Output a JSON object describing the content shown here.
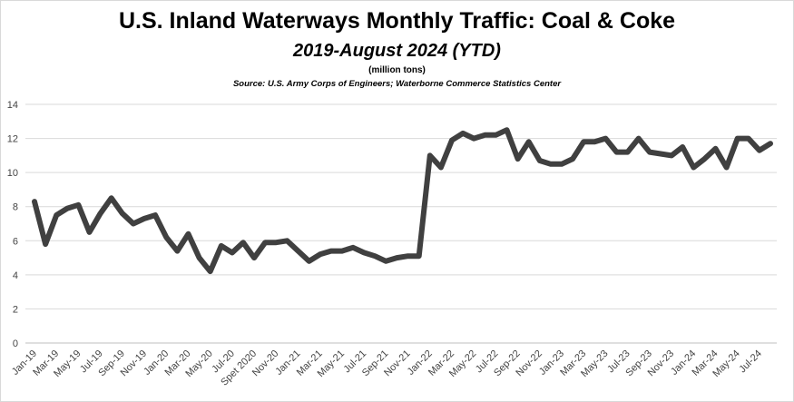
{
  "title": "U.S. Inland Waterways Monthly Traffic:  Coal & Coke",
  "subtitle": "2019-August 2024 (YTD)",
  "unit_note": "(million tons)",
  "source": "Source:  U.S. Army Corps of Engineers; Waterborne Commerce Statistics Center",
  "colors": {
    "line": "#404040",
    "grid": "#d9d9d9",
    "axis": "#bfbfbf"
  },
  "chart_data": {
    "type": "line",
    "title": "U.S. Inland Waterways Monthly Traffic:  Coal & Coke",
    "ylabel": "",
    "xlabel": "",
    "ylim": [
      0,
      14
    ],
    "yticks": [
      0,
      2,
      4,
      6,
      8,
      10,
      12,
      14
    ],
    "grid": true,
    "legend": "none",
    "x": [
      "Jan-19",
      "Feb-19",
      "Mar-19",
      "Apr-19",
      "May-19",
      "Jun-19",
      "Jul-19",
      "Aug-19",
      "Sep-19",
      "Oct-19",
      "Nov-19",
      "Dec-19",
      "Jan-20",
      "Feb-20",
      "Mar-20",
      "Apr-20",
      "May-20",
      "Jun-20",
      "Jul-20",
      "Aug-20",
      "Spet 2020",
      "Oct-20",
      "Nov-20",
      "Dec-20",
      "Jan-21",
      "Feb-21",
      "Mar-21",
      "Apr-21",
      "May-21",
      "Jun-21",
      "Jul-21",
      "Aug-21",
      "Sep-21",
      "Oct-21",
      "Nov-21",
      "Dec-21",
      "Jan-22",
      "Feb-22",
      "Mar-22",
      "Apr-22",
      "May-22",
      "Jun-22",
      "Jul-22",
      "Aug-22",
      "Sep-22",
      "Oct-22",
      "Nov-22",
      "Dec-22",
      "Jan-23",
      "Feb-23",
      "Mar-23",
      "Apr-23",
      "May-23",
      "Jun-23",
      "Jul-23",
      "Aug-23",
      "Sep-23",
      "Oct-23",
      "Nov-23",
      "Dec-23",
      "Jan-24",
      "Feb-24",
      "Mar-24",
      "Apr-24",
      "May-24",
      "Jun-24",
      "Jul-24",
      "Aug-24"
    ],
    "tick_labels": [
      "Jan-19",
      "Mar-19",
      "May-19",
      "Jul-19",
      "Sep-19",
      "Nov-19",
      "Jan-20",
      "Mar-20",
      "May-20",
      "Jul-20",
      "Spet 2020",
      "Nov-20",
      "Jan-21",
      "Mar-21",
      "May-21",
      "Jul-21",
      "Sep-21",
      "Nov-21",
      "Jan-22",
      "Mar-22",
      "May-22",
      "Jul-22",
      "Sep-22",
      "Nov-22",
      "Jan-23",
      "Mar-23",
      "May-23",
      "Jul-23",
      "Sep-23",
      "Nov-23",
      "Jan-24",
      "Mar-24",
      "May-24",
      "Jul-24"
    ],
    "series": [
      {
        "values": [
          8.3,
          5.8,
          7.5,
          7.9,
          8.1,
          6.5,
          7.6,
          8.5,
          7.6,
          7.0,
          7.3,
          7.5,
          6.2,
          5.4,
          6.4,
          5.0,
          4.2,
          5.7,
          5.3,
          5.9,
          5.0,
          5.9,
          5.9,
          6.0,
          5.4,
          4.8,
          5.2,
          5.4,
          5.4,
          5.6,
          5.3,
          5.1,
          4.8,
          5.0,
          5.1,
          5.1,
          11.0,
          10.3,
          11.9,
          12.3,
          12.0,
          12.2,
          12.2,
          12.5,
          10.8,
          11.8,
          10.7,
          10.5,
          10.5,
          10.8,
          11.8,
          11.8,
          12.0,
          11.2,
          11.2,
          12.0,
          11.2,
          11.1,
          11.0,
          11.5,
          10.3,
          10.8,
          11.4,
          10.3,
          12.0,
          12.0,
          11.3,
          11.7
        ]
      }
    ]
  }
}
